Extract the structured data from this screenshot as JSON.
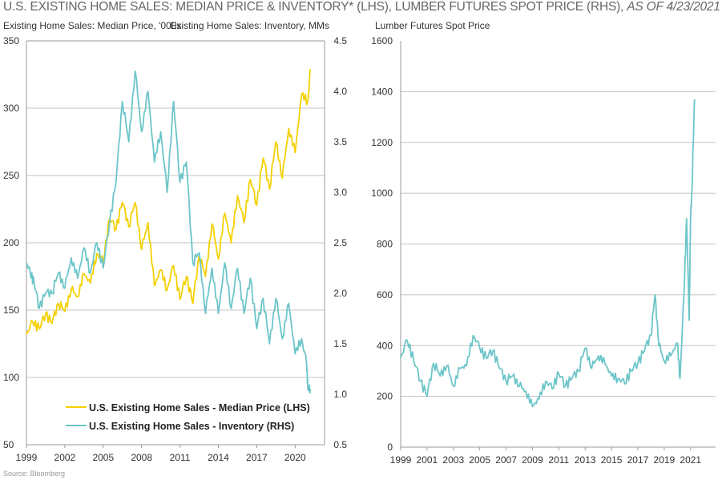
{
  "title": "U.S. EXISTING HOME SALES: MEDIAN PRICE & INVENTORY* (LHS), LUMBER FUTURES SPOT PRICE (RHS),",
  "title_date": "AS OF 4/23/2021",
  "source": "Source: Bloomberg",
  "colors": {
    "price": "#f5d000",
    "inventory": "#6cc5c8",
    "grid": "#b0b0b0"
  },
  "chart_data": [
    {
      "type": "line",
      "ylabel": "Existing Home Sales: Median Price, '000s",
      "y2label": "Existing Home Sales: Inventory, MMs",
      "ylim": [
        50,
        350
      ],
      "y2lim": [
        0.5,
        4.5
      ],
      "xlim": [
        1999,
        2022.3
      ],
      "yticks": [
        "350",
        "300",
        "250",
        "200",
        "150",
        "100",
        "50"
      ],
      "y2ticks": [
        "4.5",
        "4.0",
        "3.5",
        "3.0",
        "2.5",
        "2.0",
        "1.5",
        "1.0",
        "0.5"
      ],
      "xticks": [
        "1999",
        "2002",
        "2005",
        "2008",
        "2011",
        "2014",
        "2017",
        "2020"
      ],
      "grid": true,
      "legend": "bottom-left",
      "series": [
        {
          "name": "U.S. Existing Home Sales - Median Price (LHS)",
          "axis": "left",
          "x": [
            1999,
            1999.5,
            2000,
            2000.5,
            2001,
            2001.5,
            2002,
            2002.5,
            2003,
            2003.5,
            2004,
            2004.5,
            2005,
            2005.5,
            2006,
            2006.5,
            2007,
            2007.5,
            2008,
            2008.5,
            2009,
            2009.5,
            2010,
            2010.5,
            2011,
            2011.5,
            2012,
            2012.5,
            2013,
            2013.5,
            2014,
            2014.5,
            2015,
            2015.5,
            2016,
            2016.5,
            2017,
            2017.5,
            2018,
            2018.5,
            2019,
            2019.5,
            2020,
            2020.5,
            2021,
            2021.2
          ],
          "y": [
            132,
            141,
            136,
            147,
            140,
            155,
            149,
            165,
            160,
            177,
            170,
            192,
            186,
            218,
            210,
            230,
            212,
            230,
            195,
            215,
            168,
            180,
            165,
            183,
            158,
            175,
            155,
            190,
            175,
            214,
            188,
            222,
            200,
            235,
            215,
            247,
            228,
            263,
            240,
            275,
            248,
            285,
            267,
            310,
            305,
            329
          ]
        },
        {
          "name": "U.S. Existing Home Sales - Inventory (RHS)",
          "axis": "right",
          "x": [
            1999,
            1999.3,
            1999.6,
            2000,
            2000.5,
            2001,
            2001.5,
            2002,
            2002.5,
            2003,
            2003.5,
            2004,
            2004.5,
            2005,
            2005.5,
            2006,
            2006.5,
            2007,
            2007.5,
            2008,
            2008.5,
            2009,
            2009.5,
            2010,
            2010.5,
            2011,
            2011.5,
            2012,
            2012.5,
            2013,
            2013.5,
            2014,
            2014.5,
            2015,
            2015.5,
            2016,
            2016.5,
            2017,
            2017.5,
            2018,
            2018.5,
            2019,
            2019.5,
            2020,
            2020.5,
            2020.9,
            2021,
            2021.2
          ],
          "y": [
            2.3,
            2.2,
            2.1,
            1.85,
            2.0,
            2.0,
            2.2,
            2.05,
            2.35,
            2.15,
            2.45,
            2.2,
            2.5,
            2.25,
            2.7,
            3.1,
            3.9,
            3.5,
            4.2,
            3.6,
            4.0,
            3.3,
            3.6,
            3.0,
            3.9,
            3.1,
            3.3,
            2.3,
            2.4,
            1.8,
            2.25,
            1.8,
            2.3,
            1.85,
            2.25,
            1.8,
            2.15,
            1.65,
            1.95,
            1.5,
            1.95,
            1.55,
            1.9,
            1.4,
            1.55,
            1.3,
            1.05,
            1.05
          ]
        }
      ]
    },
    {
      "type": "line",
      "ylabel": "Lumber Futures Spot Price",
      "ylim": [
        0,
        1600
      ],
      "xlim": [
        1999,
        2022.9
      ],
      "yticks": [
        "1600",
        "1400",
        "1200",
        "1000",
        "800",
        "600",
        "400",
        "200",
        "0"
      ],
      "xticks": [
        "1999",
        "2001",
        "2003",
        "2005",
        "2007",
        "2009",
        "2011",
        "2013",
        "2015",
        "2017",
        "2019",
        "2021"
      ],
      "grid": true,
      "series": [
        {
          "x": [
            1999,
            1999.5,
            2000,
            2000.5,
            2001,
            2001.5,
            2002,
            2002.5,
            2003,
            2003.5,
            2004,
            2004.5,
            2005,
            2005.5,
            2006,
            2006.5,
            2007,
            2007.5,
            2008,
            2008.5,
            2009,
            2009.5,
            2010,
            2010.5,
            2011,
            2011.5,
            2012,
            2012.5,
            2013,
            2013.5,
            2014,
            2014.5,
            2015,
            2015.5,
            2016,
            2016.5,
            2017,
            2017.5,
            2018,
            2018.3,
            2018.6,
            2019,
            2019.5,
            2020,
            2020.2,
            2020.5,
            2020.7,
            2020.9,
            2021,
            2021.1,
            2021.3
          ],
          "y": [
            350,
            420,
            340,
            260,
            200,
            330,
            280,
            320,
            240,
            310,
            320,
            440,
            390,
            350,
            380,
            310,
            260,
            280,
            240,
            220,
            160,
            190,
            260,
            230,
            290,
            240,
            270,
            300,
            390,
            310,
            360,
            330,
            280,
            270,
            250,
            300,
            330,
            380,
            440,
            600,
            400,
            340,
            360,
            410,
            270,
            600,
            900,
            500,
            900,
            1000,
            1370
          ]
        }
      ]
    }
  ]
}
